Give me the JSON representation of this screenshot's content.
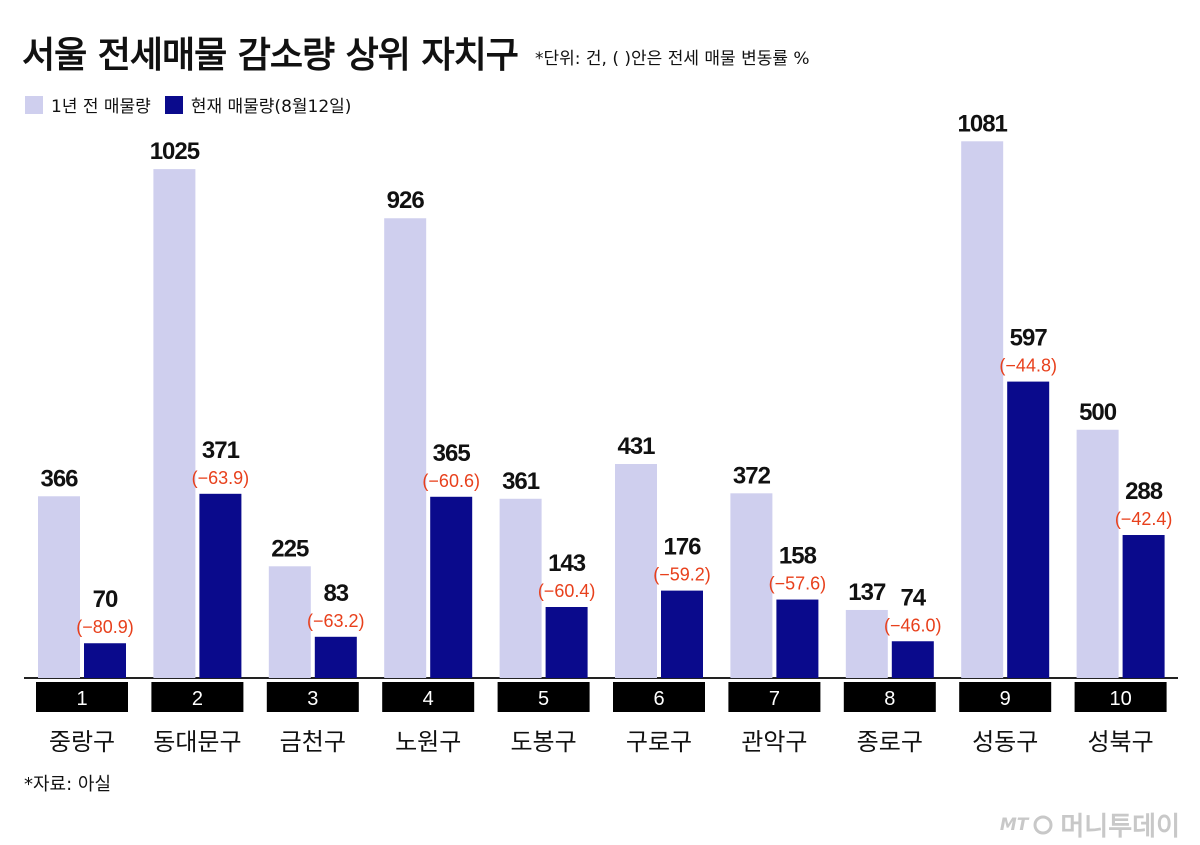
{
  "title": "서울 전세매물 감소량 상위 자치구",
  "unit_note": "*단위: 건, ( )안은 전세 매물 변동률 %",
  "legend": {
    "items": [
      {
        "label": "1년 전 매물량",
        "color": "#cfcfee"
      },
      {
        "label": "현재 매물량(8월12일)",
        "color": "#0a0a8c"
      }
    ]
  },
  "source": "*자료: 아실",
  "logo": {
    "mark": "MT",
    "name": "머니투데이"
  },
  "chart_data": {
    "type": "bar",
    "title": "서울 전세매물 감소량 상위 자치구",
    "ranks": [
      "1",
      "2",
      "3",
      "4",
      "5",
      "6",
      "7",
      "8",
      "9",
      "10"
    ],
    "categories": [
      "중랑구",
      "동대문구",
      "금천구",
      "노원구",
      "도봉구",
      "구로구",
      "관악구",
      "종로구",
      "성동구",
      "성북구"
    ],
    "series": [
      {
        "name": "1년 전 매물량",
        "color": "#cfcfee",
        "values": [
          366,
          1025,
          225,
          926,
          361,
          431,
          372,
          137,
          1081,
          500
        ]
      },
      {
        "name": "현재 매물량(8월12일)",
        "color": "#0a0a8c",
        "values": [
          70,
          371,
          83,
          365,
          143,
          176,
          158,
          74,
          597,
          288
        ]
      }
    ],
    "change_labels": [
      "(−80.9)",
      "(−63.9)",
      "(−63.2)",
      "(−60.6)",
      "(−60.4)",
      "(−59.2)",
      "(−57.6)",
      "(−46.0)",
      "(−44.8)",
      "(−42.4)"
    ],
    "change_color": "#e8401c",
    "ylim": [
      0,
      1140
    ],
    "grid": false,
    "legend_position": "top-left"
  }
}
